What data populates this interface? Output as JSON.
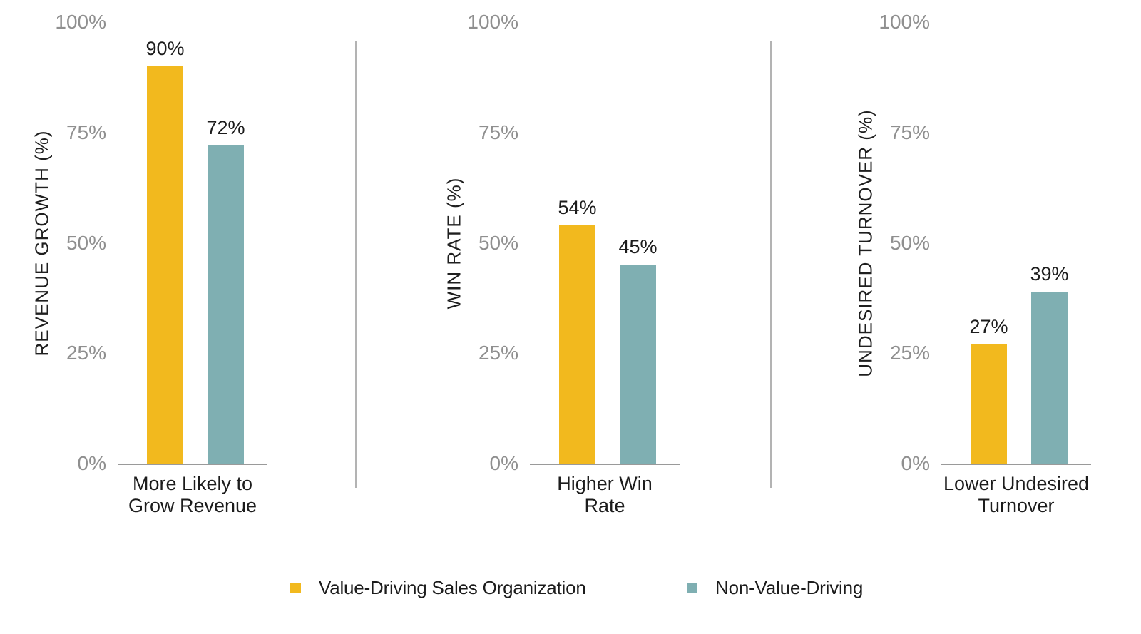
{
  "background": "#ffffff",
  "colors": {
    "series1": "#F2B91E",
    "series2": "#7FAFB2",
    "tick_label": "#8F8F8F",
    "axis_line": "#9A9A9A",
    "divider": "#B3B3B3",
    "text": "#1F1F1F"
  },
  "chart_data": [
    {
      "type": "bar",
      "title": "",
      "ylabel": "REVENUE GROWTH (%)",
      "xlabel": "More Likely to Grow Revenue",
      "xlabel_lines": [
        "More Likely to",
        "Grow Revenue"
      ],
      "categories": [
        "More Likely to Grow Revenue"
      ],
      "series": [
        {
          "name": "Value-Driving Sales Organization",
          "values": [
            90
          ],
          "value_label": "90%",
          "color": "#F2B91E"
        },
        {
          "name": "Non-Value-Driving",
          "values": [
            72
          ],
          "value_label": "72%",
          "color": "#7FAFB2"
        }
      ],
      "ylim": [
        0,
        100
      ],
      "yticks": [
        "0%",
        "25%",
        "50%",
        "75%",
        "100%"
      ],
      "grid": false,
      "legend_position": "bottom"
    },
    {
      "type": "bar",
      "title": "",
      "ylabel": "WIN RATE (%)",
      "xlabel": "Higher Win Rate",
      "xlabel_lines": [
        "Higher Win",
        "Rate"
      ],
      "categories": [
        "Higher Win Rate"
      ],
      "series": [
        {
          "name": "Value-Driving Sales Organization",
          "values": [
            54
          ],
          "value_label": "54%",
          "color": "#F2B91E"
        },
        {
          "name": "Non-Value-Driving",
          "values": [
            45
          ],
          "value_label": "45%",
          "color": "#7FAFB2"
        }
      ],
      "ylim": [
        0,
        100
      ],
      "yticks": [
        "0%",
        "25%",
        "50%",
        "75%",
        "100%"
      ],
      "grid": false,
      "legend_position": "bottom"
    },
    {
      "type": "bar",
      "title": "",
      "ylabel": "UNDESIRED TURNOVER (%)",
      "xlabel": "Lower Undesired Turnover",
      "xlabel_lines": [
        "Lower Undesired",
        "Turnover"
      ],
      "categories": [
        "Lower Undesired Turnover"
      ],
      "series": [
        {
          "name": "Value-Driving Sales Organization",
          "values": [
            27
          ],
          "value_label": "27%",
          "color": "#F2B91E"
        },
        {
          "name": "Non-Value-Driving",
          "values": [
            39
          ],
          "value_label": "39%",
          "color": "#7FAFB2"
        }
      ],
      "ylim": [
        0,
        100
      ],
      "yticks": [
        "0%",
        "25%",
        "50%",
        "75%",
        "100%"
      ],
      "grid": false,
      "legend_position": "bottom"
    }
  ],
  "legend": {
    "items": [
      {
        "label": "Value-Driving Sales Organization",
        "color": "#F2B91E"
      },
      {
        "label": "Non-Value-Driving",
        "color": "#7FAFB2"
      }
    ]
  }
}
